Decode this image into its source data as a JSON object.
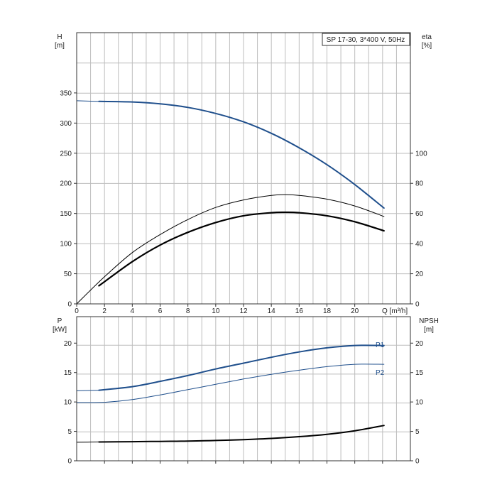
{
  "chart_data": [
    {
      "type": "line",
      "title": "SP 17-30, 3*400 V, 50Hz",
      "xlabel": "Q [m³/h]",
      "x_ticks": [
        "0",
        "2",
        "4",
        "6",
        "8",
        "10",
        "12",
        "14",
        "16",
        "18",
        "20"
      ],
      "xlim": [
        0,
        24
      ],
      "y_left": {
        "label": "H",
        "unit": "[m]",
        "ticks": [
          "0",
          "50",
          "100",
          "150",
          "200",
          "250",
          "300",
          "350"
        ],
        "lim": [
          0,
          450
        ]
      },
      "y_right": {
        "label": "eta",
        "unit": "[%]",
        "ticks": [
          "0",
          "20",
          "40",
          "60",
          "80",
          "100"
        ],
        "lim": [
          0,
          180
        ]
      },
      "grid": true,
      "series": [
        {
          "name": "",
          "axis": "left",
          "color": "#1f4f8c",
          "width": 2,
          "x": [
            1.6,
            4,
            6,
            8,
            10,
            12,
            14,
            16,
            18,
            20,
            22.1
          ],
          "y": [
            336,
            335,
            332,
            326,
            316,
            302,
            283,
            259,
            231,
            198,
            159
          ]
        },
        {
          "name": "",
          "axis": "left",
          "color": "#1f4f8c",
          "width": 1,
          "x": [
            0,
            1.6
          ],
          "y": [
            337,
            336
          ]
        },
        {
          "name": "",
          "axis": "right",
          "color": "#000000",
          "width": 1,
          "x": [
            0,
            2,
            4,
            6,
            8,
            10,
            12,
            14,
            15,
            16,
            18,
            20,
            22.1
          ],
          "y": [
            0,
            18,
            34,
            46,
            56,
            64,
            69,
            72,
            72.5,
            72,
            69.5,
            65,
            58
          ]
        },
        {
          "name": "",
          "axis": "right",
          "color": "#000000",
          "width": 2.2,
          "x": [
            1.6,
            4,
            6,
            8,
            10,
            12,
            14,
            15,
            16,
            18,
            20,
            22.1
          ],
          "y": [
            12,
            28,
            39,
            47.5,
            54,
            58.5,
            60.5,
            60.8,
            60.5,
            58.5,
            54.5,
            48.5
          ]
        }
      ]
    },
    {
      "type": "line",
      "xlim": [
        0,
        24
      ],
      "y_left": {
        "label": "P",
        "unit": "[kW]",
        "ticks": [
          "0",
          "5",
          "10",
          "15",
          "20"
        ],
        "lim": [
          0,
          24.5
        ]
      },
      "y_right": {
        "label": "NPSH",
        "unit": "[m]",
        "ticks": [
          "0",
          "5",
          "10",
          "15",
          "20"
        ],
        "lim": [
          0,
          24.5
        ]
      },
      "grid": true,
      "series": [
        {
          "name": "P1",
          "axis": "left",
          "color": "#1f4f8c",
          "width": 2,
          "x": [
            1.6,
            4,
            6,
            8,
            10,
            12,
            14,
            16,
            18,
            20,
            22.1
          ],
          "y": [
            12.0,
            12.6,
            13.5,
            14.5,
            15.6,
            16.6,
            17.6,
            18.5,
            19.2,
            19.6,
            19.6
          ]
        },
        {
          "name": "",
          "axis": "left",
          "color": "#1f4f8c",
          "width": 1,
          "x": [
            0,
            1.6
          ],
          "y": [
            11.9,
            12.0
          ]
        },
        {
          "name": "P2",
          "axis": "left",
          "color": "#1f4f8c",
          "width": 1,
          "x": [
            0,
            2,
            4,
            6,
            8,
            10,
            12,
            14,
            16,
            18,
            20,
            22.1
          ],
          "y": [
            9.9,
            9.95,
            10.4,
            11.2,
            12.1,
            13.0,
            13.9,
            14.7,
            15.4,
            16.0,
            16.4,
            16.4
          ]
        },
        {
          "name": "",
          "axis": "right",
          "color": "#000000",
          "width": 2,
          "x": [
            1.6,
            4,
            6,
            8,
            10,
            12,
            14,
            16,
            18,
            20,
            22.1
          ],
          "y": [
            3.2,
            3.25,
            3.3,
            3.35,
            3.45,
            3.6,
            3.8,
            4.1,
            4.5,
            5.1,
            6.0
          ]
        },
        {
          "name": "",
          "axis": "right",
          "color": "#000000",
          "width": 1,
          "x": [
            0,
            1.6
          ],
          "y": [
            3.15,
            3.2
          ]
        }
      ]
    }
  ]
}
